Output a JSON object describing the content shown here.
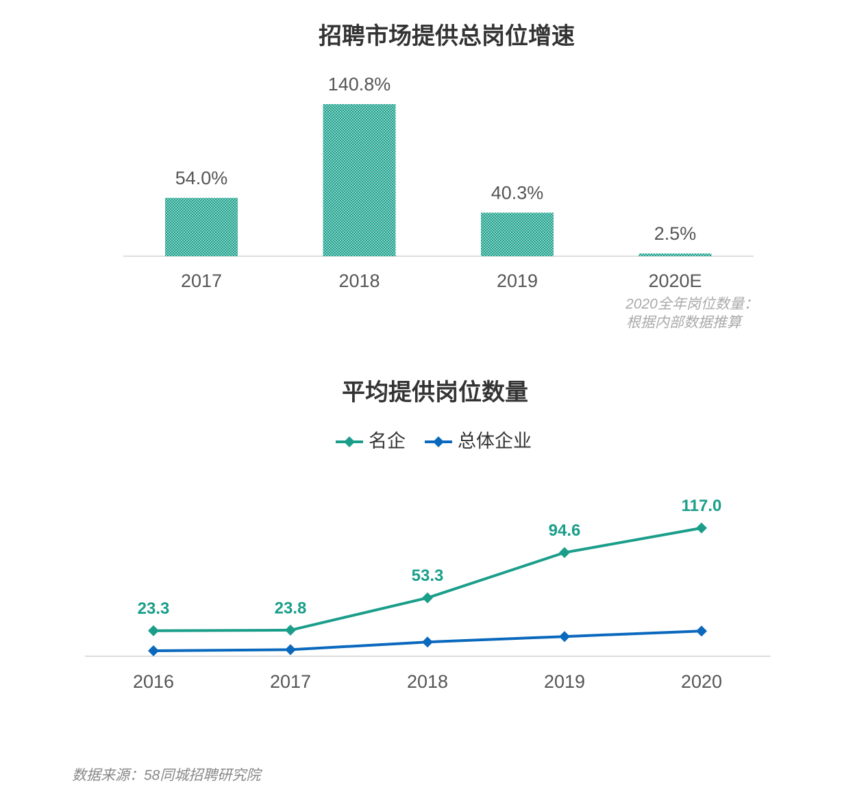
{
  "chart_data": [
    {
      "type": "bar",
      "title": "招聘市场提供总岗位增速",
      "categories": [
        "2017",
        "2018",
        "2019",
        "2020E"
      ],
      "values": [
        54.0,
        140.8,
        40.3,
        2.5
      ],
      "value_labels": [
        "54.0%",
        "140.8%",
        "40.3%",
        "2.5%"
      ],
      "color": "#1a9e8a",
      "ylim": [
        0,
        150
      ],
      "note": [
        "2020全年岗位数量：",
        "根据内部数据推算"
      ]
    },
    {
      "type": "line",
      "title": "平均提供岗位数量",
      "categories": [
        "2016",
        "2017",
        "2018",
        "2019",
        "2020"
      ],
      "series": [
        {
          "name": "名企",
          "color": "#1a9e8a",
          "values": [
            23.3,
            23.8,
            53.3,
            94.6,
            117.0
          ],
          "value_labels": [
            "23.3",
            "23.8",
            "53.3",
            "94.6",
            "117.0"
          ]
        },
        {
          "name": "总体企业",
          "color": "#0a68bd",
          "values": [
            5,
            6,
            13,
            18,
            23
          ]
        }
      ],
      "ylim": [
        0,
        125
      ],
      "source": "数据来源：58同城招聘研究院"
    }
  ]
}
